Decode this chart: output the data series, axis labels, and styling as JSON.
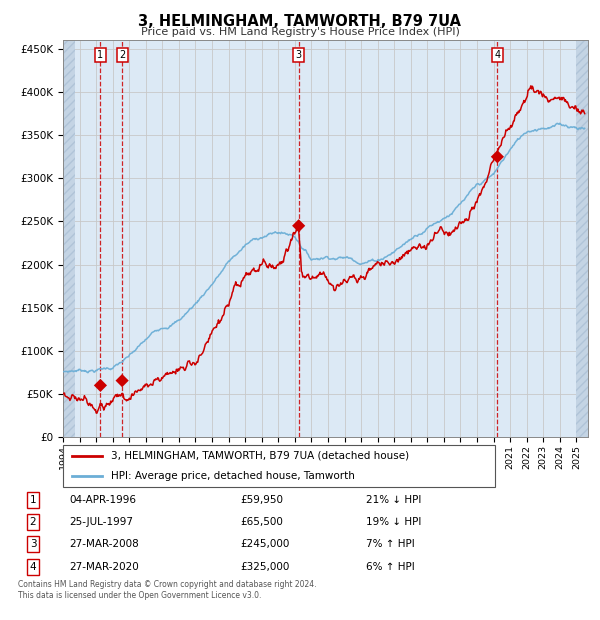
{
  "title": "3, HELMINGHAM, TAMWORTH, B79 7UA",
  "subtitle": "Price paid vs. HM Land Registry's House Price Index (HPI)",
  "legend_line1": "3, HELMINGHAM, TAMWORTH, B79 7UA (detached house)",
  "legend_line2": "HPI: Average price, detached house, Tamworth",
  "footer1": "Contains HM Land Registry data © Crown copyright and database right 2024.",
  "footer2": "This data is licensed under the Open Government Licence v3.0.",
  "transactions": [
    {
      "num": 1,
      "price": 59950,
      "x_year": 1996.26
    },
    {
      "num": 2,
      "price": 65500,
      "x_year": 1997.57
    },
    {
      "num": 3,
      "price": 245000,
      "x_year": 2008.23
    },
    {
      "num": 4,
      "price": 325000,
      "x_year": 2020.23
    }
  ],
  "table_rows": [
    [
      "1",
      "04-APR-1996",
      "£59,950",
      "21% ↓ HPI"
    ],
    [
      "2",
      "25-JUL-1997",
      "£65,500",
      "19% ↓ HPI"
    ],
    [
      "3",
      "27-MAR-2008",
      "£245,000",
      "7% ↑ HPI"
    ],
    [
      "4",
      "27-MAR-2020",
      "£325,000",
      "6% ↑ HPI"
    ]
  ],
  "hpi_line_color": "#6baed6",
  "price_line_color": "#cc0000",
  "marker_color": "#cc0000",
  "vline_color": "#cc0000",
  "grid_color": "#c8c8c8",
  "bg_plot_color": "#dce9f5",
  "hatch_color": "#c4d4e4",
  "ylim_min": 0,
  "ylim_max": 460000,
  "xlim_min": 1994.0,
  "xlim_max": 2025.7,
  "hatch_left_end": 1994.75,
  "hatch_right_start": 2025.0,
  "yticks": [
    0,
    50000,
    100000,
    150000,
    200000,
    250000,
    300000,
    350000,
    400000,
    450000
  ],
  "ytick_labels": [
    "£0",
    "£50K",
    "£100K",
    "£150K",
    "£200K",
    "£250K",
    "£300K",
    "£350K",
    "£400K",
    "£450K"
  ],
  "xticks": [
    1994,
    1995,
    1996,
    1997,
    1998,
    1999,
    2000,
    2001,
    2002,
    2003,
    2004,
    2005,
    2006,
    2007,
    2008,
    2009,
    2010,
    2011,
    2012,
    2013,
    2014,
    2015,
    2016,
    2017,
    2018,
    2019,
    2020,
    2021,
    2022,
    2023,
    2024,
    2025
  ],
  "hpi_anchors_x": [
    1994,
    1995,
    1996,
    1997,
    1998,
    1999,
    2000,
    2001,
    2002,
    2003,
    2004,
    2005,
    2006,
    2007,
    2008,
    2009,
    2010,
    2011,
    2012,
    2013,
    2014,
    2015,
    2016,
    2017,
    2018,
    2019,
    2020,
    2021,
    2022,
    2023,
    2024,
    2025.5
  ],
  "hpi_anchors_y": [
    76000,
    78000,
    79000,
    82000,
    92000,
    108000,
    124000,
    133000,
    152000,
    176000,
    200000,
    218000,
    228000,
    232000,
    228000,
    202000,
    207000,
    207000,
    204000,
    207000,
    218000,
    232000,
    248000,
    261000,
    276000,
    292000,
    302000,
    330000,
    350000,
    358000,
    360000,
    358000
  ],
  "price_anchors_x": [
    1994,
    1995,
    1996.26,
    1997.57,
    1998,
    1999,
    2000,
    2001,
    2002,
    2003,
    2004,
    2005,
    2006,
    2007,
    2008.23,
    2008.4,
    2009,
    2010,
    2011,
    2012,
    2013,
    2014,
    2015,
    2016,
    2017,
    2018,
    2019,
    2020.23,
    2021,
    2022,
    2023,
    2024,
    2025.5
  ],
  "price_anchors_y": [
    50000,
    52000,
    59950,
    65500,
    72000,
    83000,
    96000,
    104000,
    122000,
    144000,
    168000,
    180000,
    183000,
    188000,
    245000,
    190000,
    193000,
    194000,
    194000,
    196000,
    202000,
    212000,
    225000,
    238000,
    252000,
    268000,
    282000,
    325000,
    360000,
    385000,
    388000,
    385000,
    375000
  ]
}
